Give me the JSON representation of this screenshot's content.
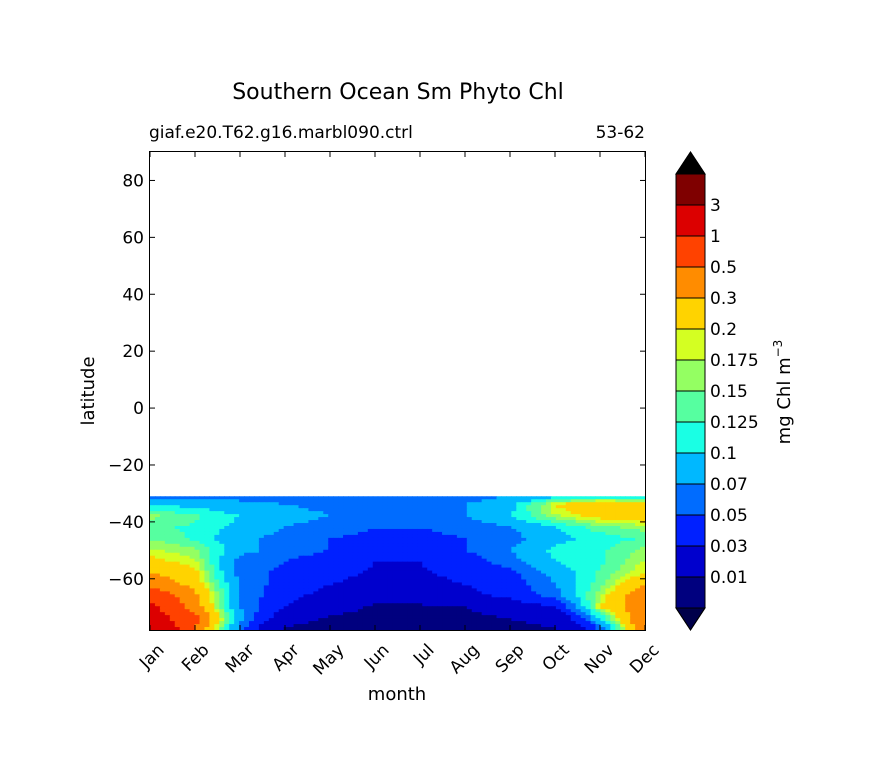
{
  "chart_data": {
    "type": "contourf",
    "title": "Southern Ocean Sm Phyto Chl",
    "subtitle_left": "giaf.e20.T62.g16.marbl090.ctrl",
    "subtitle_right": "53-62",
    "xlabel": "month",
    "ylabel": "latitude",
    "x_categories": [
      "Jan",
      "Feb",
      "Mar",
      "Apr",
      "May",
      "Jun",
      "Jul",
      "Aug",
      "Sep",
      "Oct",
      "Nov",
      "Dec"
    ],
    "ylim": [
      -78,
      90
    ],
    "yticks": [
      -60,
      -40,
      -20,
      0,
      20,
      40,
      60,
      80
    ],
    "ytick_labels": [
      "−60",
      "−40",
      "−20",
      "0",
      "20",
      "40",
      "60",
      "80"
    ],
    "data_top_latitude": -31,
    "colorbar": {
      "label": "mg Chl m",
      "label_superscript": "−3",
      "levels": [
        "0.01",
        "0.03",
        "0.05",
        "0.07",
        "0.1",
        "0.125",
        "0.15",
        "0.175",
        "0.2",
        "0.3",
        "0.5",
        "1",
        "3"
      ],
      "colors": [
        "#00007f",
        "#0000cd",
        "#0020ff",
        "#006cff",
        "#00b8ff",
        "#1affe4",
        "#56ffa0",
        "#94ff62",
        "#d4ff22",
        "#ffd300",
        "#ff8c00",
        "#ff4200",
        "#dc0000",
        "#7f0000"
      ],
      "extend_min_color": "#00004a",
      "extend_max_color": "#000000"
    },
    "latitudes": [
      -78,
      -74,
      -70,
      -66,
      -62,
      -58,
      -54,
      -50,
      -46,
      -42,
      -38,
      -34,
      -31
    ],
    "values": [
      [
        3.5,
        0.5,
        0.06,
        0.008,
        0.005,
        0.004,
        0.004,
        0.005,
        0.007,
        0.009,
        0.05,
        0.5
      ],
      [
        1.5,
        0.6,
        0.08,
        0.02,
        0.008,
        0.006,
        0.006,
        0.007,
        0.01,
        0.015,
        0.1,
        0.5
      ],
      [
        1.2,
        0.4,
        0.07,
        0.03,
        0.02,
        0.008,
        0.008,
        0.01,
        0.02,
        0.03,
        0.2,
        0.45
      ],
      [
        0.8,
        0.35,
        0.07,
        0.035,
        0.025,
        0.02,
        0.02,
        0.025,
        0.035,
        0.06,
        0.17,
        0.45
      ],
      [
        0.45,
        0.25,
        0.07,
        0.04,
        0.03,
        0.025,
        0.025,
        0.03,
        0.04,
        0.07,
        0.14,
        0.3
      ],
      [
        0.3,
        0.22,
        0.06,
        0.045,
        0.035,
        0.028,
        0.028,
        0.035,
        0.045,
        0.08,
        0.13,
        0.2
      ],
      [
        0.22,
        0.18,
        0.06,
        0.05,
        0.04,
        0.03,
        0.03,
        0.04,
        0.06,
        0.1,
        0.12,
        0.18
      ],
      [
        0.18,
        0.16,
        0.08,
        0.06,
        0.05,
        0.04,
        0.04,
        0.05,
        0.07,
        0.11,
        0.12,
        0.16
      ],
      [
        0.15,
        0.12,
        0.08,
        0.06,
        0.05,
        0.045,
        0.045,
        0.05,
        0.06,
        0.09,
        0.11,
        0.13
      ],
      [
        0.13,
        0.12,
        0.09,
        0.07,
        0.06,
        0.05,
        0.05,
        0.055,
        0.07,
        0.1,
        0.14,
        0.16
      ],
      [
        0.16,
        0.13,
        0.1,
        0.08,
        0.07,
        0.06,
        0.06,
        0.07,
        0.1,
        0.17,
        0.22,
        0.25
      ],
      [
        0.1,
        0.09,
        0.08,
        0.07,
        0.065,
        0.06,
        0.06,
        0.07,
        0.09,
        0.2,
        0.3,
        0.28
      ],
      [
        0.06,
        0.06,
        0.06,
        0.06,
        0.06,
        0.06,
        0.06,
        0.06,
        0.07,
        0.09,
        0.1,
        0.1
      ]
    ]
  }
}
